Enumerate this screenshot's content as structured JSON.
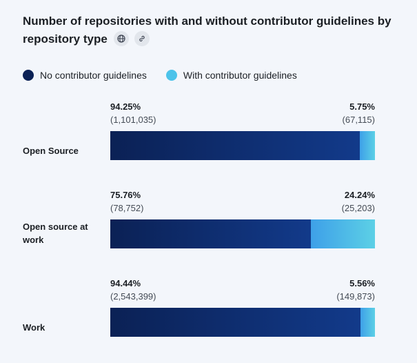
{
  "chart_data": {
    "type": "bar",
    "orientation": "horizontal-stacked-100",
    "title": "Number of repositories with and without contributor guidelines by repository type",
    "legend_placement": "top-left",
    "series": [
      {
        "name": "No contributor guidelines",
        "color": "#0b2155"
      },
      {
        "name": "With contributor guidelines",
        "color": "#4cc3ea"
      }
    ],
    "categories": [
      "Open Source",
      "Open source at work",
      "Work"
    ],
    "rows": [
      {
        "category": "Open Source",
        "no_pct": 94.25,
        "no_count": "1,101,035",
        "with_pct": 5.75,
        "with_count": "67,115"
      },
      {
        "category": "Open source at work",
        "no_pct": 75.76,
        "no_count": "78,752",
        "with_pct": 24.24,
        "with_count": "25,203"
      },
      {
        "category": "Work",
        "no_pct": 94.44,
        "no_count": "2,543,399",
        "with_pct": 5.56,
        "with_count": "149,873"
      }
    ]
  },
  "icons": [
    "globe-icon",
    "link-icon"
  ]
}
